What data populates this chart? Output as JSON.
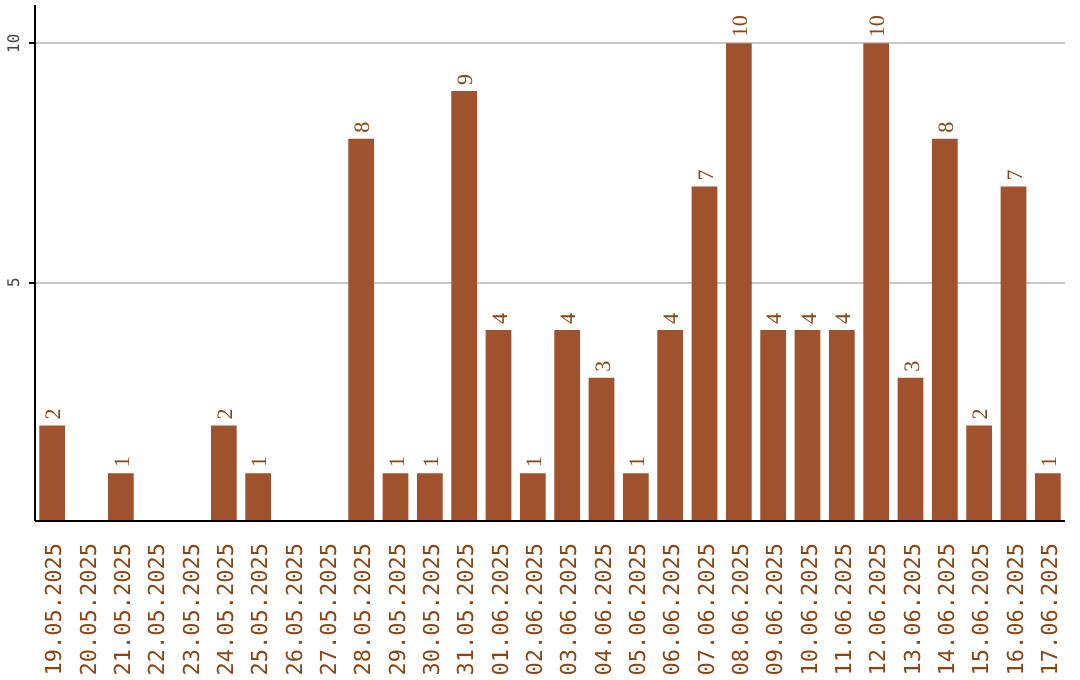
{
  "chart_data": {
    "type": "bar",
    "categories": [
      "19.05.2025",
      "20.05.2025",
      "21.05.2025",
      "22.05.2025",
      "23.05.2025",
      "24.05.2025",
      "25.05.2025",
      "26.05.2025",
      "27.05.2025",
      "28.05.2025",
      "29.05.2025",
      "30.05.2025",
      "31.05.2025",
      "01.06.2025",
      "02.06.2025",
      "03.06.2025",
      "04.06.2025",
      "05.06.2025",
      "06.06.2025",
      "07.06.2025",
      "08.06.2025",
      "09.06.2025",
      "10.06.2025",
      "11.06.2025",
      "12.06.2025",
      "13.06.2025",
      "14.06.2025",
      "15.06.2025",
      "16.06.2025",
      "17.06.2025"
    ],
    "values": [
      2,
      0,
      1,
      0,
      0,
      2,
      1,
      0,
      0,
      8,
      1,
      1,
      9,
      4,
      1,
      4,
      3,
      1,
      4,
      7,
      10,
      4,
      4,
      4,
      10,
      3,
      8,
      2,
      7,
      1
    ],
    "value_labels": [
      "2",
      null,
      "1",
      null,
      null,
      "2",
      "1",
      null,
      null,
      "8",
      "1",
      "1",
      "9",
      "4",
      "1",
      "4",
      "3",
      "1",
      "4",
      "7",
      "10",
      "4",
      "4",
      "4",
      "10",
      "3",
      "8",
      "2",
      "7",
      "1"
    ],
    "color": "#a0522d",
    "ylim": [
      0,
      10.8
    ],
    "yticks": [
      5,
      10
    ],
    "grid": "y"
  }
}
